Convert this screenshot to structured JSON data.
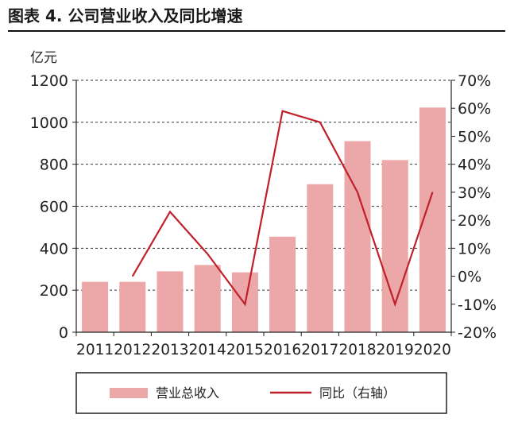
{
  "figure_title": "图表 4. 公司营业收入及同比增速",
  "chart_data": {
    "type": "bar+line",
    "y_unit_label": "亿元",
    "categories": [
      "2011",
      "2012",
      "2013",
      "2014",
      "2015",
      "2016",
      "2017",
      "2018",
      "2019",
      "2020"
    ],
    "series": [
      {
        "name": "营业总收入",
        "type": "bar",
        "axis": "left",
        "color": "#eca8a8",
        "values": [
          240,
          240,
          290,
          320,
          285,
          455,
          705,
          910,
          820,
          1070
        ]
      },
      {
        "name": "同比（右轴）",
        "type": "line",
        "axis": "right",
        "color": "#c0202a",
        "values": [
          null,
          0,
          23,
          8,
          -10,
          59,
          55,
          30,
          -10,
          30
        ]
      }
    ],
    "y_left": {
      "min": 0,
      "max": 1200,
      "ticks": [
        "0",
        "200",
        "400",
        "600",
        "800",
        "1000",
        "1200"
      ]
    },
    "y_right": {
      "min": -20,
      "max": 70,
      "ticks": [
        "-20%",
        "-10%",
        "0%",
        "10%",
        "20%",
        "30%",
        "40%",
        "50%",
        "60%",
        "70%"
      ]
    },
    "grid": "horizontal dashed",
    "legend_position": "bottom"
  }
}
